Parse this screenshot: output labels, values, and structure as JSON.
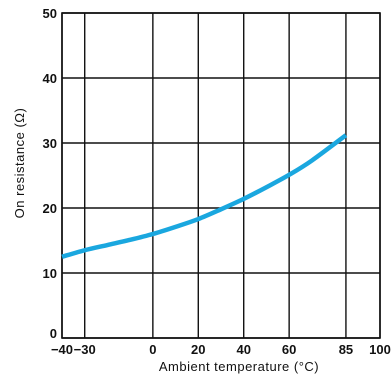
{
  "chart_data": {
    "type": "line",
    "title": "",
    "xlabel": "Ambient temperature (°C)",
    "ylabel": "On resistance (Ω)",
    "xlim": [
      -40,
      100
    ],
    "ylim": [
      0,
      50
    ],
    "x_ticks": [
      -40,
      -30,
      0,
      20,
      40,
      60,
      85,
      100
    ],
    "x_tick_labels": [
      "−40",
      "−30",
      "0",
      "20",
      "40",
      "60",
      "85",
      "100"
    ],
    "y_ticks": [
      0,
      10,
      20,
      30,
      40,
      50
    ],
    "y_tick_labels": [
      "0",
      "10",
      "20",
      "30",
      "40",
      "50"
    ],
    "grid": true,
    "legend": "none",
    "series": [
      {
        "color": "#1aa7df",
        "x": [
          -40,
          -30,
          -20,
          -10,
          0,
          10,
          20,
          30,
          40,
          50,
          60,
          70,
          85
        ],
        "y": [
          12.5,
          13.5,
          14.3,
          15.1,
          16.0,
          17.1,
          18.3,
          19.8,
          21.4,
          23.2,
          25.1,
          27.3,
          31.2
        ]
      }
    ]
  }
}
